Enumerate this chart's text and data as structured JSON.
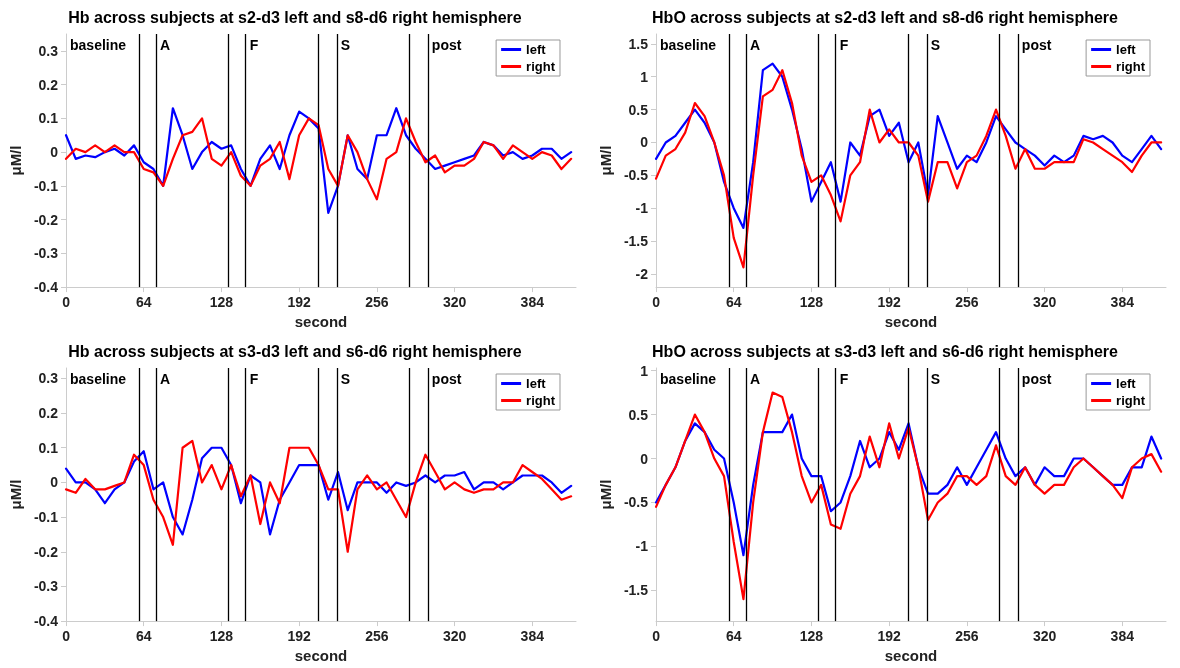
{
  "chart_data": [
    {
      "type": "line",
      "title": "Hb across subjects at s2-d3 left and s8-d6 right hemisphere",
      "xlabel": "second",
      "ylabel": "μM/l",
      "legend": "top right",
      "grid": false,
      "marker": "none",
      "line_style": "solid",
      "xlim": [
        0,
        420
      ],
      "xticks": [
        0,
        64,
        128,
        192,
        256,
        320,
        384
      ],
      "ylim": [
        -0.4,
        0.35
      ],
      "yticks": [
        -0.4,
        -0.3,
        -0.2,
        -0.1,
        0,
        0.1,
        0.2,
        0.3
      ],
      "x": [
        0,
        8,
        16,
        24,
        32,
        40,
        48,
        56,
        64,
        72,
        80,
        88,
        96,
        104,
        112,
        120,
        128,
        136,
        144,
        152,
        160,
        168,
        176,
        184,
        192,
        200,
        208,
        216,
        224,
        232,
        240,
        248,
        256,
        264,
        272,
        280,
        288,
        296,
        304,
        312,
        320,
        328,
        336,
        344,
        352,
        360,
        368,
        376,
        384,
        392,
        400,
        408,
        416
      ],
      "series": [
        {
          "name": "left",
          "color": "#0000ff",
          "values": [
            0.05,
            -0.02,
            -0.01,
            -0.015,
            0.0,
            0.01,
            -0.01,
            0.02,
            -0.03,
            -0.05,
            -0.1,
            0.13,
            0.05,
            -0.05,
            0.0,
            0.03,
            0.01,
            0.02,
            -0.05,
            -0.1,
            -0.02,
            0.02,
            -0.05,
            0.05,
            0.12,
            0.1,
            0.07,
            -0.18,
            -0.1,
            0.05,
            -0.05,
            -0.08,
            0.05,
            0.05,
            0.13,
            0.05,
            0.01,
            -0.02,
            -0.05,
            -0.04,
            -0.03,
            -0.02,
            -0.01,
            0.03,
            0.02,
            -0.01,
            0.0,
            -0.02,
            -0.01,
            0.01,
            0.01,
            -0.02,
            0.0
          ]
        },
        {
          "name": "right",
          "color": "#ff0000",
          "values": [
            -0.02,
            0.01,
            0.0,
            0.02,
            0.0,
            0.02,
            0.0,
            0.0,
            -0.05,
            -0.06,
            -0.1,
            -0.02,
            0.05,
            0.06,
            0.1,
            -0.02,
            -0.04,
            0.0,
            -0.07,
            -0.1,
            -0.04,
            -0.02,
            0.03,
            -0.08,
            0.05,
            0.1,
            0.08,
            -0.05,
            -0.1,
            0.05,
            0.0,
            -0.08,
            -0.14,
            -0.02,
            0.0,
            0.1,
            0.03,
            -0.03,
            -0.01,
            -0.06,
            -0.04,
            -0.04,
            -0.02,
            0.03,
            0.02,
            -0.02,
            0.02,
            0.0,
            -0.02,
            0.0,
            -0.01,
            -0.05,
            -0.02
          ]
        }
      ],
      "ref_lines": [
        {
          "axis": "x",
          "value": 60,
          "color": "#000000"
        },
        {
          "axis": "x",
          "value": 74,
          "label": "A",
          "color": "#000000"
        },
        {
          "axis": "x",
          "value": 134,
          "color": "#000000"
        },
        {
          "axis": "x",
          "value": 148,
          "label": "F",
          "color": "#000000"
        },
        {
          "axis": "x",
          "value": 208,
          "color": "#000000"
        },
        {
          "axis": "x",
          "value": 223,
          "label": "S",
          "color": "#000000"
        },
        {
          "axis": "x",
          "value": 283,
          "color": "#000000"
        },
        {
          "axis": "x",
          "value": 298,
          "label": "post",
          "color": "#000000"
        }
      ],
      "annotations": [
        "baseline"
      ]
    },
    {
      "type": "line",
      "title": "HbO across subjects at s2-d3 left and s8-d6 right hemisphere",
      "xlabel": "second",
      "ylabel": "μM/l",
      "legend": "top right",
      "grid": false,
      "marker": "none",
      "line_style": "solid",
      "xlim": [
        0,
        420
      ],
      "xticks": [
        0,
        64,
        128,
        192,
        256,
        320,
        384
      ],
      "ylim": [
        -2.2,
        1.65
      ],
      "yticks": [
        -2,
        -1.5,
        -1,
        -0.5,
        0,
        0.5,
        1,
        1.5
      ],
      "x": [
        0,
        8,
        16,
        24,
        32,
        40,
        48,
        56,
        64,
        72,
        80,
        88,
        96,
        104,
        112,
        120,
        128,
        136,
        144,
        152,
        160,
        168,
        176,
        184,
        192,
        200,
        208,
        216,
        224,
        232,
        240,
        248,
        256,
        264,
        272,
        280,
        288,
        296,
        304,
        312,
        320,
        328,
        336,
        344,
        352,
        360,
        368,
        376,
        384,
        392,
        400,
        408,
        416
      ],
      "series": [
        {
          "name": "left",
          "color": "#0000ff",
          "values": [
            -0.25,
            0.0,
            0.1,
            0.3,
            0.5,
            0.3,
            0.0,
            -0.6,
            -1.0,
            -1.3,
            -0.3,
            1.1,
            1.2,
            1.0,
            0.5,
            -0.1,
            -0.9,
            -0.6,
            -0.3,
            -0.9,
            0.0,
            -0.2,
            0.4,
            0.5,
            0.1,
            0.3,
            -0.3,
            0.0,
            -0.8,
            0.4,
            0.0,
            -0.4,
            -0.2,
            -0.3,
            0.0,
            0.4,
            0.2,
            0.0,
            -0.1,
            -0.2,
            -0.35,
            -0.2,
            -0.3,
            -0.2,
            0.1,
            0.05,
            0.1,
            0.0,
            -0.2,
            -0.3,
            -0.1,
            0.1,
            -0.1
          ]
        },
        {
          "name": "right",
          "color": "#ff0000",
          "values": [
            -0.55,
            -0.2,
            -0.1,
            0.15,
            0.6,
            0.4,
            0.0,
            -0.5,
            -1.45,
            -1.9,
            -0.5,
            0.7,
            0.8,
            1.1,
            0.6,
            -0.2,
            -0.6,
            -0.5,
            -0.8,
            -1.2,
            -0.5,
            -0.3,
            0.5,
            0.0,
            0.2,
            0.0,
            0.0,
            -0.2,
            -0.9,
            -0.3,
            -0.3,
            -0.7,
            -0.3,
            -0.2,
            0.1,
            0.5,
            0.1,
            -0.4,
            -0.1,
            -0.4,
            -0.4,
            -0.3,
            -0.3,
            -0.3,
            0.05,
            0.0,
            -0.1,
            -0.2,
            -0.3,
            -0.45,
            -0.2,
            0.0,
            0.0
          ]
        }
      ],
      "ref_lines": [
        {
          "axis": "x",
          "value": 60,
          "color": "#000000"
        },
        {
          "axis": "x",
          "value": 74,
          "label": "A",
          "color": "#000000"
        },
        {
          "axis": "x",
          "value": 134,
          "color": "#000000"
        },
        {
          "axis": "x",
          "value": 148,
          "label": "F",
          "color": "#000000"
        },
        {
          "axis": "x",
          "value": 208,
          "color": "#000000"
        },
        {
          "axis": "x",
          "value": 223,
          "label": "S",
          "color": "#000000"
        },
        {
          "axis": "x",
          "value": 283,
          "color": "#000000"
        },
        {
          "axis": "x",
          "value": 298,
          "label": "post",
          "color": "#000000"
        }
      ],
      "annotations": [
        "baseline"
      ]
    },
    {
      "type": "line",
      "title": "Hb across subjects at s3-d3 left and s6-d6 right hemisphere",
      "xlabel": "second",
      "ylabel": "μM/l",
      "legend": "top right",
      "grid": false,
      "marker": "none",
      "line_style": "solid",
      "xlim": [
        0,
        420
      ],
      "xticks": [
        0,
        64,
        128,
        192,
        256,
        320,
        384
      ],
      "ylim": [
        -0.4,
        0.33
      ],
      "yticks": [
        -0.4,
        -0.3,
        -0.2,
        -0.1,
        0,
        0.1,
        0.2,
        0.3
      ],
      "x": [
        0,
        8,
        16,
        24,
        32,
        40,
        48,
        56,
        64,
        72,
        80,
        88,
        96,
        104,
        112,
        120,
        128,
        136,
        144,
        152,
        160,
        168,
        176,
        184,
        192,
        200,
        208,
        216,
        224,
        232,
        240,
        248,
        256,
        264,
        272,
        280,
        288,
        296,
        304,
        312,
        320,
        328,
        336,
        344,
        352,
        360,
        368,
        376,
        384,
        392,
        400,
        408,
        416
      ],
      "series": [
        {
          "name": "left",
          "color": "#0000ff",
          "values": [
            0.04,
            0.0,
            0.0,
            -0.02,
            -0.06,
            -0.02,
            0.0,
            0.06,
            0.09,
            -0.02,
            0.0,
            -0.1,
            -0.15,
            -0.05,
            0.07,
            0.1,
            0.1,
            0.05,
            -0.06,
            0.02,
            0.0,
            -0.15,
            -0.05,
            0.0,
            0.05,
            0.05,
            0.05,
            -0.05,
            0.03,
            -0.08,
            0.0,
            0.0,
            0.0,
            -0.03,
            0.0,
            -0.01,
            0.0,
            0.02,
            0.0,
            0.02,
            0.02,
            0.03,
            -0.02,
            0.0,
            0.0,
            -0.02,
            0.0,
            0.02,
            0.02,
            0.02,
            0.0,
            -0.03,
            -0.01
          ]
        },
        {
          "name": "right",
          "color": "#ff0000",
          "values": [
            -0.02,
            -0.03,
            0.01,
            -0.02,
            -0.02,
            -0.01,
            0.0,
            0.08,
            0.05,
            -0.05,
            -0.1,
            -0.18,
            0.1,
            0.12,
            0.0,
            0.05,
            -0.02,
            0.05,
            -0.04,
            0.02,
            -0.12,
            0.0,
            -0.06,
            0.1,
            0.1,
            0.1,
            0.05,
            -0.02,
            -0.02,
            -0.2,
            -0.02,
            0.02,
            -0.02,
            0.0,
            -0.05,
            -0.1,
            0.0,
            0.08,
            0.03,
            -0.02,
            0.0,
            -0.02,
            -0.03,
            -0.02,
            -0.02,
            0.0,
            0.0,
            0.05,
            0.03,
            0.01,
            -0.02,
            -0.05,
            -0.04
          ]
        }
      ],
      "ref_lines": [
        {
          "axis": "x",
          "value": 60,
          "color": "#000000"
        },
        {
          "axis": "x",
          "value": 74,
          "label": "A",
          "color": "#000000"
        },
        {
          "axis": "x",
          "value": 134,
          "color": "#000000"
        },
        {
          "axis": "x",
          "value": 148,
          "label": "F",
          "color": "#000000"
        },
        {
          "axis": "x",
          "value": 208,
          "color": "#000000"
        },
        {
          "axis": "x",
          "value": 223,
          "label": "S",
          "color": "#000000"
        },
        {
          "axis": "x",
          "value": 283,
          "color": "#000000"
        },
        {
          "axis": "x",
          "value": 298,
          "label": "post",
          "color": "#000000"
        }
      ],
      "annotations": [
        "baseline"
      ]
    },
    {
      "type": "line",
      "title": "HbO across subjects at s3-d3 left and s6-d6 right hemisphere",
      "xlabel": "second",
      "ylabel": "μM/l",
      "legend": "top right",
      "grid": false,
      "marker": "none",
      "line_style": "solid",
      "xlim": [
        0,
        420
      ],
      "xticks": [
        0,
        64,
        128,
        192,
        256,
        320,
        384
      ],
      "ylim": [
        -1.85,
        1.03
      ],
      "yticks": [
        -1.5,
        -1,
        -0.5,
        0,
        0.5,
        1
      ],
      "x": [
        0,
        8,
        16,
        24,
        32,
        40,
        48,
        56,
        64,
        72,
        80,
        88,
        96,
        104,
        112,
        120,
        128,
        136,
        144,
        152,
        160,
        168,
        176,
        184,
        192,
        200,
        208,
        216,
        224,
        232,
        240,
        248,
        256,
        264,
        272,
        280,
        288,
        296,
        304,
        312,
        320,
        328,
        336,
        344,
        352,
        360,
        368,
        376,
        384,
        392,
        400,
        408,
        416
      ],
      "series": [
        {
          "name": "left",
          "color": "#0000ff",
          "values": [
            -0.5,
            -0.3,
            -0.1,
            0.2,
            0.4,
            0.3,
            0.1,
            0.0,
            -0.5,
            -1.1,
            -0.3,
            0.3,
            0.3,
            0.3,
            0.5,
            0.0,
            -0.2,
            -0.2,
            -0.6,
            -0.5,
            -0.2,
            0.2,
            -0.1,
            0.0,
            0.3,
            0.1,
            0.4,
            -0.1,
            -0.4,
            -0.4,
            -0.3,
            -0.1,
            -0.3,
            -0.1,
            0.1,
            0.3,
            0.0,
            -0.2,
            -0.1,
            -0.3,
            -0.1,
            -0.2,
            -0.2,
            0.0,
            0.0,
            -0.1,
            -0.2,
            -0.3,
            -0.3,
            -0.1,
            -0.1,
            0.25,
            0.0
          ]
        },
        {
          "name": "right",
          "color": "#ff0000",
          "values": [
            -0.55,
            -0.3,
            -0.1,
            0.2,
            0.5,
            0.3,
            0.0,
            -0.2,
            -0.95,
            -1.6,
            -0.5,
            0.3,
            0.75,
            0.7,
            0.3,
            -0.2,
            -0.5,
            -0.3,
            -0.75,
            -0.8,
            -0.4,
            -0.2,
            0.25,
            -0.1,
            0.4,
            0.0,
            0.35,
            -0.1,
            -0.7,
            -0.5,
            -0.4,
            -0.2,
            -0.2,
            -0.3,
            -0.2,
            0.15,
            -0.2,
            -0.3,
            -0.1,
            -0.3,
            -0.4,
            -0.3,
            -0.3,
            -0.1,
            0.0,
            -0.1,
            -0.2,
            -0.3,
            -0.45,
            -0.1,
            0.0,
            0.05,
            -0.15
          ]
        }
      ],
      "ref_lines": [
        {
          "axis": "x",
          "value": 60,
          "color": "#000000"
        },
        {
          "axis": "x",
          "value": 74,
          "label": "A",
          "color": "#000000"
        },
        {
          "axis": "x",
          "value": 134,
          "color": "#000000"
        },
        {
          "axis": "x",
          "value": 148,
          "label": "F",
          "color": "#000000"
        },
        {
          "axis": "x",
          "value": 208,
          "color": "#000000"
        },
        {
          "axis": "x",
          "value": 223,
          "label": "S",
          "color": "#000000"
        },
        {
          "axis": "x",
          "value": 283,
          "color": "#000000"
        },
        {
          "axis": "x",
          "value": 298,
          "label": "post",
          "color": "#000000"
        }
      ],
      "annotations": [
        "baseline"
      ]
    }
  ]
}
